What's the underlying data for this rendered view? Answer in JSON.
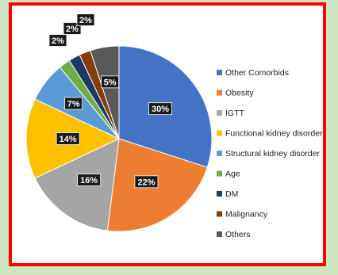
{
  "chart_data": {
    "type": "pie",
    "title": "",
    "legend_position": "right",
    "categories": [
      "Other Comorbids",
      "Obesity",
      "IGTT",
      "Functional kidney disorder",
      "Structural kidney disorder",
      "Age",
      "DM",
      "Malignancy",
      "Others"
    ],
    "values": [
      30,
      22,
      16,
      14,
      7,
      2,
      2,
      2,
      5
    ],
    "data_labels": [
      "30%",
      "22%",
      "16%",
      "14%",
      "7%",
      "2%",
      "2%",
      "2%",
      "5%"
    ],
    "colors": [
      "#4472c4",
      "#ed7d31",
      "#a5a5a5",
      "#ffc000",
      "#5b9bd5",
      "#70ad47",
      "#1f3864",
      "#843c0c",
      "#595959"
    ]
  }
}
